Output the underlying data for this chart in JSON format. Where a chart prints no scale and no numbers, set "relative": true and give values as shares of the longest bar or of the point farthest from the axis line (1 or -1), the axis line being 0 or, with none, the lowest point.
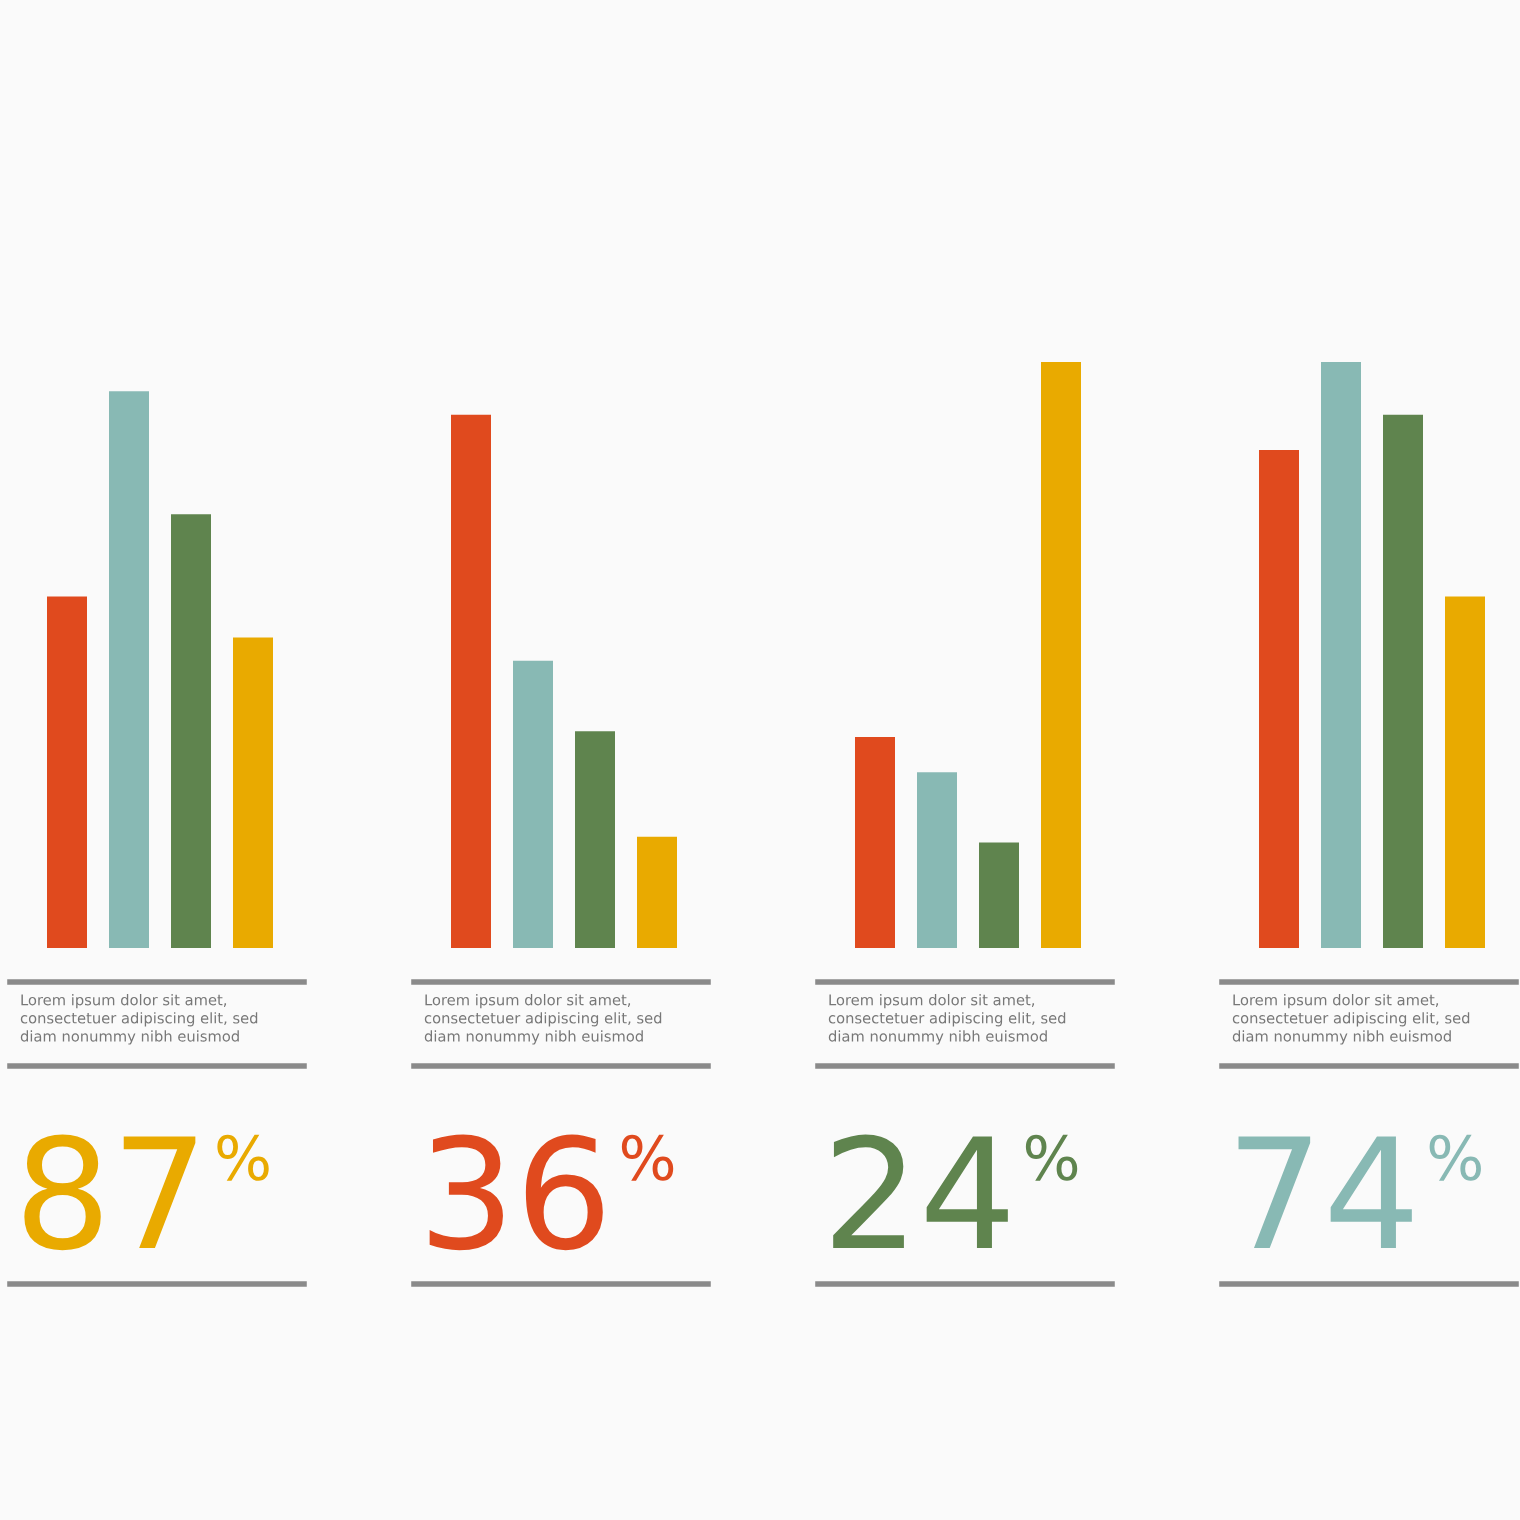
{
  "chart_data": {
    "type": "bar",
    "relative": true,
    "categories": [
      "Lorem ipsum dolor sit amet,\nconsectetuer adipiscing elit, sed\ndiam nonummy nibh euismod",
      "Lorem ipsum dolor sit amet,\nconsectetuer adipiscing elit, sed\ndiam nonummy nibh euismod",
      "Lorem ipsum dolor sit amet,\nconsectetuer adipiscing elit, sed\ndiam nonummy nibh euismod",
      "Lorem ipsum dolor sit amet,\nconsectetuer adipiscing elit, sed\ndiam nonummy nibh euismod"
    ],
    "series": [
      {
        "color": "#e04a1e",
        "values": [
          0.6,
          0.91,
          0.36,
          0.85
        ]
      },
      {
        "color": "#88b9b4",
        "values": [
          0.95,
          0.49,
          0.3,
          1
        ]
      },
      {
        "color": "#5f844e",
        "values": [
          0.74,
          0.37,
          0.18,
          0.91
        ]
      },
      {
        "color": "#e9aa00",
        "values": [
          0.53,
          0.19,
          1,
          0.6
        ]
      }
    ],
    "annotations": [
      "87%",
      "36%",
      "24%",
      "74%"
    ]
  }
}
